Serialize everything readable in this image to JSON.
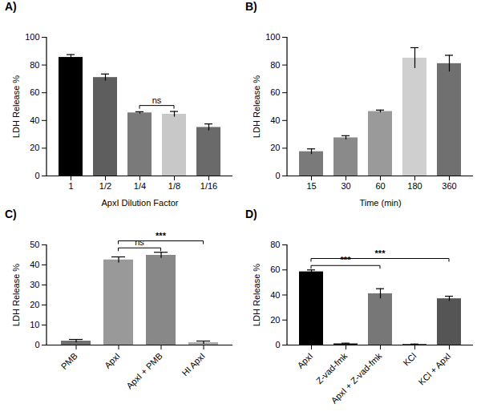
{
  "chart_data": [
    {
      "type": "bar",
      "title": "A)",
      "xlabel": "ApxI Dilution Factor",
      "ylabel": "LDH Release %",
      "categories": [
        "1",
        "1/2",
        "1/4",
        "1/8",
        "1/16"
      ],
      "values": [
        85.5,
        71,
        45.5,
        44.5,
        35
      ],
      "errors": [
        2,
        2.5,
        0.8,
        2,
        2.5
      ],
      "colors": [
        "#000000",
        "#5e5e5e",
        "#7a7a7a",
        "#c8c8c8",
        "#6a6a6a"
      ],
      "ylim": [
        0,
        100
      ],
      "yticks": [
        0,
        20,
        40,
        60,
        80,
        100
      ],
      "grid": false,
      "annotations": [
        {
          "from": "1/4",
          "to": "1/8",
          "label": "ns"
        }
      ]
    },
    {
      "type": "bar",
      "title": "B)",
      "xlabel": "Time (min)",
      "ylabel": "LDH Release %",
      "categories": [
        "15",
        "30",
        "60",
        "180",
        "360"
      ],
      "values": [
        17.5,
        27.5,
        46.5,
        85,
        81
      ],
      "errors": [
        2,
        1.5,
        1,
        7.5,
        6
      ],
      "colors": [
        "#7a7a7a",
        "#8a8a8a",
        "#9a9a9a",
        "#cfcfcf",
        "#707070"
      ],
      "ylim": [
        0,
        100
      ],
      "yticks": [
        0,
        20,
        40,
        60,
        80,
        100
      ],
      "grid": false
    },
    {
      "type": "bar",
      "title": "C)",
      "ylabel": "LDH Release %",
      "categories": [
        "PMB",
        "ApxI",
        "ApxI + PMB",
        "HI ApxI"
      ],
      "values": [
        2,
        42.5,
        44.8,
        1.2
      ],
      "errors": [
        0.8,
        1.5,
        1.5,
        0.8
      ],
      "colors": [
        "#707070",
        "#999999",
        "#888888",
        "#aaaaaa"
      ],
      "ylim": [
        0,
        50
      ],
      "yticks": [
        0,
        10,
        20,
        30,
        40,
        50
      ],
      "grid": false,
      "annotations": [
        {
          "from": "ApxI",
          "to": "ApxI + PMB",
          "label": "ns"
        },
        {
          "from": "ApxI",
          "to": "HI ApxI",
          "label": "***"
        }
      ]
    },
    {
      "type": "bar",
      "title": "D)",
      "ylabel": "LDH Release %",
      "categories": [
        "ApxI",
        "Z-vad-fmk",
        "ApxI + Z-vad-fmk",
        "KCl",
        "KCl + ApxI"
      ],
      "values": [
        58.5,
        1,
        41,
        0.5,
        37
      ],
      "errors": [
        1.5,
        0.5,
        4,
        0.3,
        2
      ],
      "colors": [
        "#000000",
        "#1a1a1a",
        "#777777",
        "#222222",
        "#555555"
      ],
      "ylim": [
        0,
        80
      ],
      "yticks": [
        0,
        20,
        40,
        60,
        80
      ],
      "grid": false,
      "annotations": [
        {
          "from": "ApxI",
          "to": "ApxI + Z-vad-fmk",
          "label": "***"
        },
        {
          "from": "ApxI",
          "to": "KCl + ApxI",
          "label": "***"
        }
      ]
    }
  ]
}
